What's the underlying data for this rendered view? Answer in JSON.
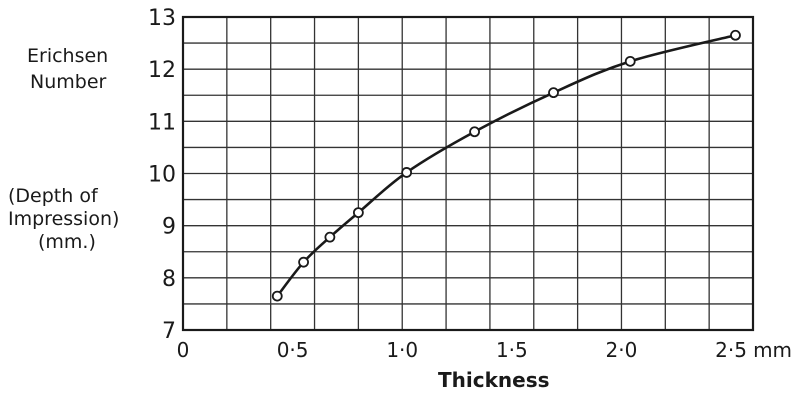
{
  "chart_data": {
    "type": "line",
    "xlabel": "Thickness",
    "ylabel_lines": [
      "Erichsen",
      "Number",
      "(Depth of",
      "Impression)",
      "(mm.)"
    ],
    "x_unit": "mm.",
    "xlim": [
      0,
      2.6
    ],
    "ylim": [
      7,
      13
    ],
    "x_ticks": [
      {
        "value": 0,
        "label": "0"
      },
      {
        "value": 0.5,
        "label": "0·5"
      },
      {
        "value": 1.0,
        "label": "1·0"
      },
      {
        "value": 1.5,
        "label": "1·5"
      },
      {
        "value": 2.0,
        "label": "2·0"
      },
      {
        "value": 2.5,
        "label": "2·5"
      }
    ],
    "y_ticks": [
      7,
      8,
      9,
      10,
      11,
      12,
      13
    ],
    "grid": true,
    "series": [
      {
        "points": [
          {
            "x": 0.43,
            "y": 7.65
          },
          {
            "x": 0.55,
            "y": 8.3
          },
          {
            "x": 0.67,
            "y": 8.78
          },
          {
            "x": 0.8,
            "y": 9.25
          },
          {
            "x": 1.02,
            "y": 10.02
          },
          {
            "x": 1.33,
            "y": 10.8
          },
          {
            "x": 1.69,
            "y": 11.55
          },
          {
            "x": 2.04,
            "y": 12.15
          },
          {
            "x": 2.52,
            "y": 12.65
          }
        ]
      }
    ]
  }
}
